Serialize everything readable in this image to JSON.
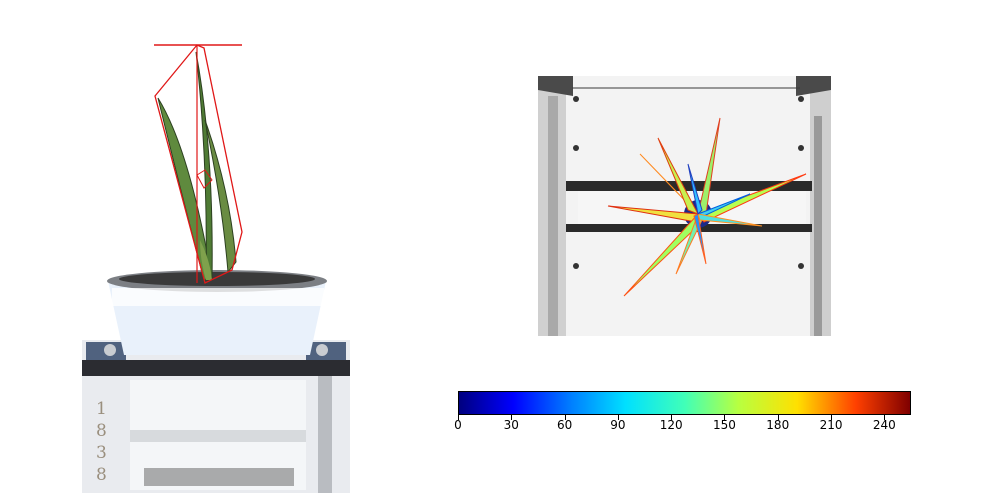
{
  "side_view": {
    "pot_label_digits": [
      "1",
      "8",
      "3",
      "8"
    ]
  },
  "colorbar": {
    "colormap": "jet",
    "min": 0,
    "max": 255,
    "ticks": [
      {
        "label": "0"
      },
      {
        "label": "30"
      },
      {
        "label": "60"
      },
      {
        "label": "90"
      },
      {
        "label": "120"
      },
      {
        "label": "150"
      },
      {
        "label": "180"
      },
      {
        "label": "210"
      },
      {
        "label": "240"
      }
    ]
  }
}
